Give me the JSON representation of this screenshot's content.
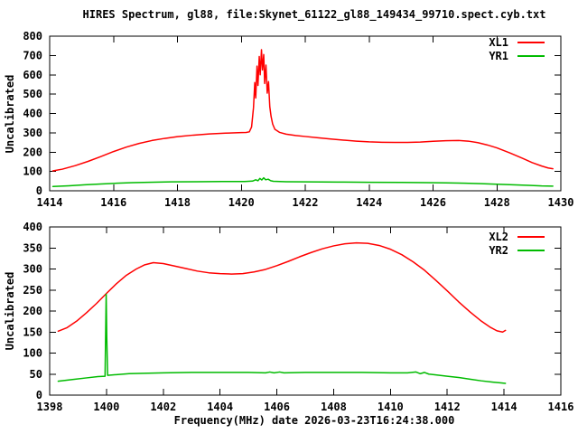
{
  "title": "HIRES Spectrum, gl88, file:Skynet_61122_gl88_149434_99710.spect.cyb.txt",
  "background_color": "#ffffff",
  "axis_color": "#000000",
  "chart_data": [
    {
      "id": "top-spectrum",
      "type": "line",
      "ylabel": "Uncalibrated",
      "xlabel": "",
      "xlim": [
        1414,
        1430
      ],
      "ylim": [
        0,
        800
      ],
      "xticks": [
        1414,
        1416,
        1418,
        1420,
        1422,
        1424,
        1426,
        1428,
        1430
      ],
      "yticks": [
        0,
        100,
        200,
        300,
        400,
        500,
        600,
        700,
        800
      ],
      "grid": false,
      "legend_position": "top-right-inside",
      "series": [
        {
          "name": "XL1",
          "color": "#ff0000",
          "points": [
            [
              1414.1,
              103
            ],
            [
              1414.4,
              112
            ],
            [
              1414.8,
              130
            ],
            [
              1415.2,
              152
            ],
            [
              1415.6,
              177
            ],
            [
              1416.0,
              203
            ],
            [
              1416.4,
              226
            ],
            [
              1416.8,
              245
            ],
            [
              1417.2,
              260
            ],
            [
              1417.6,
              271
            ],
            [
              1418.0,
              280
            ],
            [
              1418.5,
              288
            ],
            [
              1419.0,
              294
            ],
            [
              1419.5,
              298
            ],
            [
              1420.0,
              301
            ],
            [
              1420.15,
              302
            ],
            [
              1420.25,
              305
            ],
            [
              1420.32,
              330
            ],
            [
              1420.38,
              430
            ],
            [
              1420.42,
              560
            ],
            [
              1420.45,
              480
            ],
            [
              1420.49,
              645
            ],
            [
              1420.52,
              545
            ],
            [
              1420.56,
              695
            ],
            [
              1420.59,
              600
            ],
            [
              1420.63,
              730
            ],
            [
              1420.66,
              625
            ],
            [
              1420.7,
              705
            ],
            [
              1420.73,
              555
            ],
            [
              1420.77,
              650
            ],
            [
              1420.81,
              505
            ],
            [
              1420.85,
              565
            ],
            [
              1420.89,
              435
            ],
            [
              1420.93,
              385
            ],
            [
              1420.98,
              345
            ],
            [
              1421.05,
              318
            ],
            [
              1421.2,
              302
            ],
            [
              1421.4,
              293
            ],
            [
              1421.7,
              286
            ],
            [
              1422.0,
              281
            ],
            [
              1422.4,
              274
            ],
            [
              1422.8,
              268
            ],
            [
              1423.2,
              262
            ],
            [
              1423.6,
              257
            ],
            [
              1424.0,
              253
            ],
            [
              1424.4,
              251
            ],
            [
              1424.8,
              250
            ],
            [
              1425.2,
              250
            ],
            [
              1425.6,
              252
            ],
            [
              1426.0,
              256
            ],
            [
              1426.4,
              259
            ],
            [
              1426.8,
              260
            ],
            [
              1427.1,
              257
            ],
            [
              1427.4,
              249
            ],
            [
              1427.7,
              237
            ],
            [
              1428.0,
              222
            ],
            [
              1428.4,
              196
            ],
            [
              1428.8,
              168
            ],
            [
              1429.1,
              146
            ],
            [
              1429.4,
              128
            ],
            [
              1429.6,
              118
            ],
            [
              1429.75,
              114
            ]
          ]
        },
        {
          "name": "YR1",
          "color": "#00bb00",
          "points": [
            [
              1414.1,
              22
            ],
            [
              1414.6,
              26
            ],
            [
              1415.1,
              31
            ],
            [
              1415.6,
              35
            ],
            [
              1416.1,
              39
            ],
            [
              1416.6,
              42
            ],
            [
              1417.1,
              44
            ],
            [
              1417.8,
              46
            ],
            [
              1418.6,
              47
            ],
            [
              1419.4,
              48
            ],
            [
              1420.1,
              48
            ],
            [
              1420.35,
              50
            ],
            [
              1420.45,
              57
            ],
            [
              1420.52,
              52
            ],
            [
              1420.58,
              64
            ],
            [
              1420.64,
              56
            ],
            [
              1420.7,
              67
            ],
            [
              1420.76,
              57
            ],
            [
              1420.84,
              60
            ],
            [
              1420.92,
              52
            ],
            [
              1421.0,
              49
            ],
            [
              1421.4,
              47
            ],
            [
              1422.0,
              46
            ],
            [
              1423.0,
              45
            ],
            [
              1424.0,
              44
            ],
            [
              1425.0,
              43
            ],
            [
              1425.8,
              42
            ],
            [
              1426.4,
              41
            ],
            [
              1427.0,
              39
            ],
            [
              1427.5,
              37
            ],
            [
              1428.0,
              34
            ],
            [
              1428.5,
              31
            ],
            [
              1429.0,
              28
            ],
            [
              1429.4,
              25
            ],
            [
              1429.75,
              24
            ]
          ]
        }
      ]
    },
    {
      "id": "bottom-spectrum",
      "type": "line",
      "ylabel": "Uncalibrated",
      "xlabel": "Frequency(MHz) date 2026-03-23T16:24:38.000",
      "xlim": [
        1398,
        1416
      ],
      "ylim": [
        0,
        400
      ],
      "xticks": [
        1398,
        1400,
        1402,
        1404,
        1406,
        1408,
        1410,
        1412,
        1414,
        1416
      ],
      "yticks": [
        0,
        50,
        100,
        150,
        200,
        250,
        300,
        350,
        400
      ],
      "grid": false,
      "legend_position": "top-right-inside",
      "series": [
        {
          "name": "XL2",
          "color": "#ff0000",
          "points": [
            [
              1398.3,
              152
            ],
            [
              1398.6,
              160
            ],
            [
              1398.95,
              176
            ],
            [
              1399.3,
              196
            ],
            [
              1399.65,
              218
            ],
            [
              1400.0,
              242
            ],
            [
              1400.35,
              265
            ],
            [
              1400.7,
              285
            ],
            [
              1401.05,
              300
            ],
            [
              1401.35,
              310
            ],
            [
              1401.65,
              315
            ],
            [
              1402.0,
              313
            ],
            [
              1402.4,
              307
            ],
            [
              1402.8,
              301
            ],
            [
              1403.2,
              295
            ],
            [
              1403.6,
              291
            ],
            [
              1404.0,
              289
            ],
            [
              1404.4,
              288
            ],
            [
              1404.8,
              289
            ],
            [
              1405.2,
              293
            ],
            [
              1405.6,
              299
            ],
            [
              1406.0,
              308
            ],
            [
              1406.4,
              318
            ],
            [
              1406.8,
              329
            ],
            [
              1407.2,
              339
            ],
            [
              1407.6,
              348
            ],
            [
              1408.0,
              355
            ],
            [
              1408.4,
              360
            ],
            [
              1408.8,
              362
            ],
            [
              1409.2,
              361
            ],
            [
              1409.6,
              356
            ],
            [
              1410.0,
              347
            ],
            [
              1410.4,
              334
            ],
            [
              1410.8,
              317
            ],
            [
              1411.2,
              297
            ],
            [
              1411.6,
              273
            ],
            [
              1412.0,
              248
            ],
            [
              1412.4,
              222
            ],
            [
              1412.8,
              198
            ],
            [
              1413.2,
              176
            ],
            [
              1413.5,
              162
            ],
            [
              1413.75,
              153
            ],
            [
              1413.95,
              150
            ],
            [
              1414.05,
              154
            ]
          ]
        },
        {
          "name": "YR2",
          "color": "#00bb00",
          "points": [
            [
              1398.3,
              33
            ],
            [
              1398.8,
              37
            ],
            [
              1399.3,
              41
            ],
            [
              1399.7,
              44
            ],
            [
              1399.95,
              45
            ],
            [
              1399.99,
              240
            ],
            [
              1400.01,
              140
            ],
            [
              1400.04,
              47
            ],
            [
              1400.4,
              49
            ],
            [
              1400.8,
              51
            ],
            [
              1401.3,
              52
            ],
            [
              1402.0,
              53
            ],
            [
              1403.0,
              54
            ],
            [
              1404.0,
              54
            ],
            [
              1405.0,
              54
            ],
            [
              1405.6,
              53
            ],
            [
              1405.75,
              55
            ],
            [
              1405.9,
              53
            ],
            [
              1406.1,
              55
            ],
            [
              1406.25,
              53
            ],
            [
              1407.0,
              54
            ],
            [
              1408.0,
              54
            ],
            [
              1409.0,
              54
            ],
            [
              1410.0,
              53
            ],
            [
              1410.6,
              53
            ],
            [
              1410.9,
              55
            ],
            [
              1411.05,
              51
            ],
            [
              1411.2,
              54
            ],
            [
              1411.35,
              50
            ],
            [
              1411.6,
              48
            ],
            [
              1412.0,
              45
            ],
            [
              1412.4,
              42
            ],
            [
              1412.8,
              38
            ],
            [
              1413.2,
              34
            ],
            [
              1413.6,
              31
            ],
            [
              1413.9,
              29
            ],
            [
              1414.05,
              28
            ]
          ]
        }
      ]
    }
  ]
}
